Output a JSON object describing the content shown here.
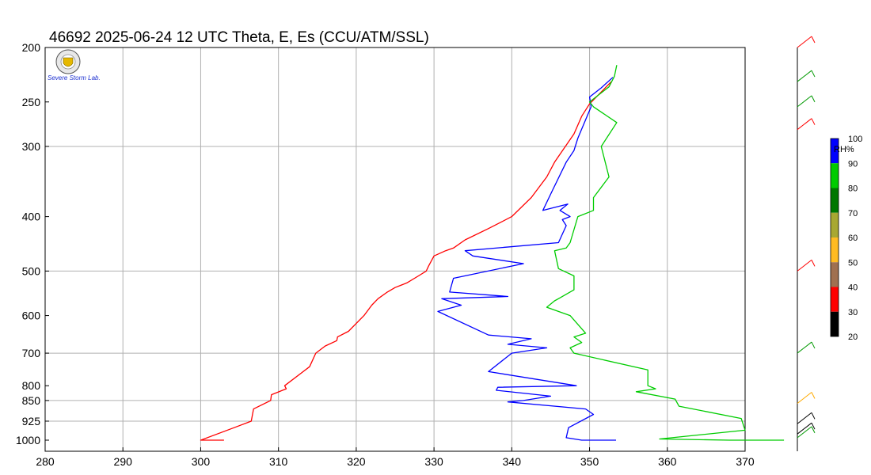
{
  "chart_data": {
    "type": "line",
    "title": "46692  2025-06-24 12 UTC  Theta, E, Es (CCU/ATM/SSL)",
    "x_axis": {
      "range": [
        280,
        370
      ],
      "ticks": [
        280,
        290,
        300,
        310,
        320,
        330,
        340,
        350,
        360,
        370
      ],
      "grid": true
    },
    "y_axis": {
      "scale": "log",
      "reversed": true,
      "range": [
        1000,
        200
      ],
      "ticks": [
        200,
        250,
        300,
        400,
        500,
        600,
        700,
        800,
        850,
        925,
        1000
      ],
      "gridlines": [
        300,
        500,
        700,
        850,
        925
      ]
    },
    "series": [
      {
        "color": "#ff0000",
        "x": [
          303.0,
          300.0,
          304.3,
          306.5,
          306.8,
          309.0,
          309.1,
          311.0,
          310.8,
          314.0,
          314.8,
          316.0,
          317.5,
          317.6,
          319.0,
          321.0,
          322.0,
          322.8,
          324.0,
          325.0,
          326.5,
          328.0,
          329.0,
          329.3,
          330.0,
          331.5,
          332.5,
          334.0,
          337.0,
          338.5,
          340.0,
          342.5,
          344.5,
          345.5,
          348.0,
          349.0,
          350.0,
          351.5,
          352.8
        ],
        "y": [
          1000,
          1000,
          950,
          925,
          880,
          850,
          830,
          810,
          800,
          740,
          700,
          680,
          665,
          655,
          640,
          600,
          575,
          560,
          545,
          535,
          525,
          510,
          500,
          490,
          470,
          460,
          455,
          440,
          420,
          410,
          400,
          370,
          340,
          320,
          285,
          265,
          252,
          240,
          230
        ]
      },
      {
        "color": "#0000ff",
        "x": [
          353.4,
          349.0,
          347.0,
          347.3,
          350.5,
          349.5,
          339.5,
          341.5,
          345.0,
          338.0,
          338.2,
          348.3,
          337.0,
          340.0,
          344.5,
          339.5,
          342.5,
          337.0,
          330.5,
          333.5,
          331.0,
          339.5,
          332.0,
          332.5,
          341.5,
          335.0,
          334.0,
          346.0,
          347.0,
          346.5,
          347.5,
          346.2,
          347.2,
          344.0,
          345.2,
          347.0,
          348.0,
          348.5,
          350.2,
          350.0,
          351.5,
          353.0
        ],
        "y": [
          1000,
          1000,
          990,
          950,
          900,
          880,
          855,
          850,
          835,
          815,
          805,
          800,
          755,
          700,
          685,
          675,
          660,
          650,
          590,
          575,
          560,
          555,
          545,
          515,
          485,
          470,
          460,
          445,
          415,
          405,
          400,
          390,
          380,
          390,
          360,
          320,
          305,
          290,
          255,
          245,
          236,
          226
        ]
      },
      {
        "color": "#00cc00",
        "x": [
          375.0,
          368.0,
          359.0,
          370.0,
          369.5,
          361.5,
          361.0,
          356.0,
          358.5,
          357.5,
          357.5,
          348.0,
          347.5,
          349.0,
          348.0,
          349.5,
          347.5,
          344.5,
          345.5,
          346.0,
          348.0,
          348.0,
          346.0,
          345.5,
          347.0,
          347.5,
          348.5,
          350.5,
          350.5,
          352.5,
          351.5,
          353.5,
          350.5,
          350.0,
          352.5,
          353.2,
          353.5
        ],
        "y": [
          1000,
          1000,
          995,
          960,
          915,
          870,
          845,
          820,
          810,
          800,
          750,
          700,
          685,
          670,
          655,
          645,
          600,
          580,
          565,
          560,
          540,
          510,
          495,
          460,
          455,
          445,
          400,
          390,
          370,
          340,
          300,
          272,
          255,
          250,
          235,
          225,
          215
        ]
      }
    ],
    "colorbar": {
      "title": "RH%",
      "labels": [
        "100",
        "90",
        "80",
        "70",
        "60",
        "50",
        "40",
        "30",
        "20"
      ],
      "colors": [
        "#0000ff",
        "#00cc00",
        "#007700",
        "#a8a832",
        "#ffbb22",
        "#a07050",
        "#ff0000",
        "#000000"
      ]
    },
    "wind_barbs": [
      {
        "p": 200,
        "color": "#ff0000"
      },
      {
        "p": 230,
        "color": "#009900"
      },
      {
        "p": 255,
        "color": "#009900"
      },
      {
        "p": 280,
        "color": "#ff0000"
      },
      {
        "p": 500,
        "color": "#ff0000"
      },
      {
        "p": 700,
        "color": "#009900"
      },
      {
        "p": 860,
        "color": "#ffaa00"
      },
      {
        "p": 935,
        "color": "#000000"
      },
      {
        "p": 975,
        "color": "#000000"
      },
      {
        "p": 990,
        "color": "#009900"
      }
    ]
  },
  "logo": {
    "text": "Severe Storm Lab."
  }
}
